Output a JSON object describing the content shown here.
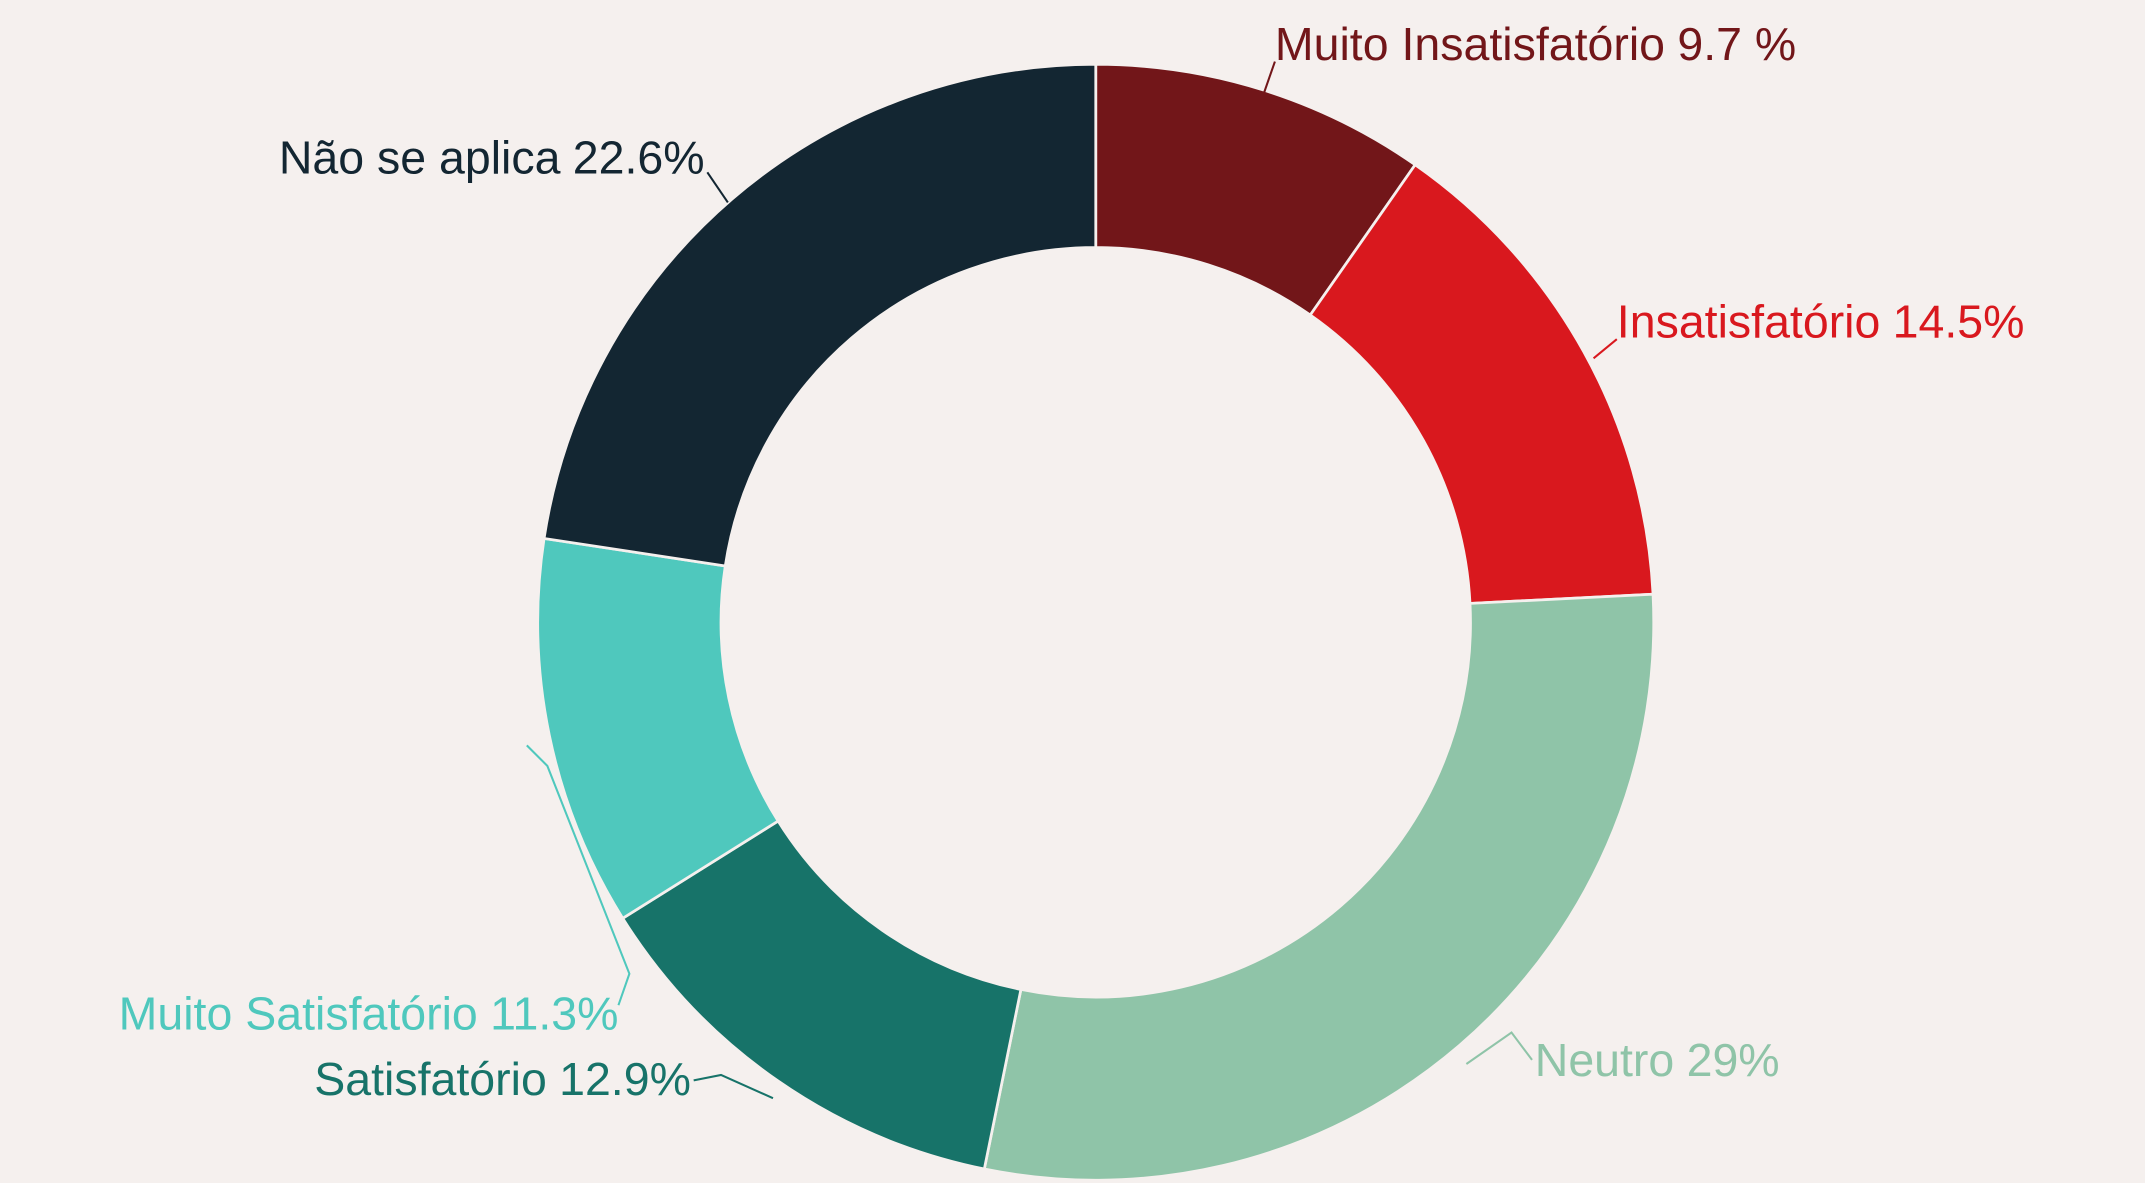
{
  "chart_data": {
    "type": "donut",
    "categories": [
      "Muito Insatisfatório",
      "Insatisfatório",
      "Neutro",
      "Satisfatório",
      "Muito Satisfatório",
      "Não se aplica"
    ],
    "values": [
      9.7,
      14.5,
      29,
      12.9,
      11.3,
      22.6
    ],
    "value_labels": [
      "9.7 %",
      "14.5%",
      "29%",
      "12.9%",
      "11.3%",
      "22.6%"
    ],
    "colors": [
      "#721619",
      "#d9181e",
      "#8fc4a8",
      "#177369",
      "#4fc8bd",
      "#132632"
    ]
  }
}
